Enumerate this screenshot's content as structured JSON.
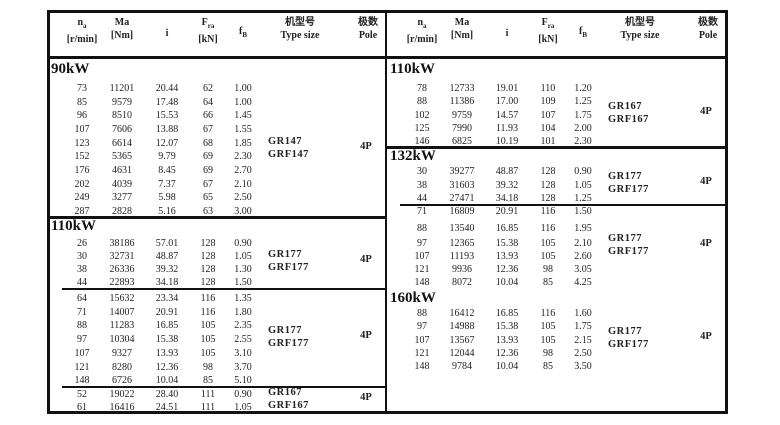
{
  "header": {
    "na": "n",
    "na_sub": "a",
    "na_unit": "[r/min]",
    "ma": "Ma",
    "ma_unit": "[Nm]",
    "i": "i",
    "fra": "F",
    "fra_sub": "ra",
    "fra_unit": "[kN]",
    "fb": "f",
    "fb_sub": "B",
    "type_cn": "机型号",
    "type_en": "Type size",
    "pole_cn": "极数",
    "pole_en": "Pole"
  },
  "left": [
    {
      "heading": "90kW",
      "type": [
        "GR147",
        "GRF147"
      ],
      "pole": "4P",
      "rows": [
        [
          "73",
          "11201",
          "20.44",
          "62",
          "1.00"
        ],
        [
          "85",
          "9579",
          "17.48",
          "64",
          "1.00"
        ],
        [
          "96",
          "8510",
          "15.53",
          "66",
          "1.45"
        ],
        [
          "107",
          "7606",
          "13.88",
          "67",
          "1.55"
        ],
        [
          "123",
          "6614",
          "12.07",
          "68",
          "1.85"
        ],
        [
          "152",
          "5365",
          "9.79",
          "69",
          "2.30"
        ],
        [
          "176",
          "4631",
          "8.45",
          "69",
          "2.70"
        ],
        [
          "202",
          "4039",
          "7.37",
          "67",
          "2.10"
        ],
        [
          "249",
          "3277",
          "5.98",
          "65",
          "2.50"
        ],
        [
          "287",
          "2828",
          "5.16",
          "63",
          "3.00"
        ]
      ]
    },
    {
      "heading": "110kW",
      "type": [
        "GR177",
        "GRF177"
      ],
      "pole": "4P",
      "rows": [
        [
          "26",
          "38186",
          "57.01",
          "128",
          "0.90"
        ],
        [
          "30",
          "32731",
          "48.87",
          "128",
          "1.05"
        ],
        [
          "38",
          "26336",
          "39.32",
          "128",
          "1.30"
        ],
        [
          "44",
          "22893",
          "34.18",
          "128",
          "1.50"
        ]
      ]
    },
    {
      "heading": "",
      "type": [
        "GR177",
        "GRF177"
      ],
      "pole": "4P",
      "rows": [
        [
          "64",
          "15632",
          "23.34",
          "116",
          "1.35"
        ],
        [
          "71",
          "14007",
          "20.91",
          "116",
          "1.80"
        ],
        [
          "88",
          "11283",
          "16.85",
          "105",
          "2.35"
        ],
        [
          "97",
          "10304",
          "15.38",
          "105",
          "2.55"
        ],
        [
          "107",
          "9327",
          "13.93",
          "105",
          "3.10"
        ],
        [
          "121",
          "8280",
          "12.36",
          "98",
          "3.70"
        ],
        [
          "148",
          "6726",
          "10.04",
          "85",
          "5.10"
        ]
      ]
    },
    {
      "heading": "",
      "type": [
        "GR167",
        "GRF167"
      ],
      "pole": "4P",
      "rows": [
        [
          "52",
          "19022",
          "28.40",
          "111",
          "0.90"
        ],
        [
          "61",
          "16416",
          "24.51",
          "111",
          "1.05"
        ]
      ]
    }
  ],
  "right": [
    {
      "heading": "110kW",
      "type": [
        "GR167",
        "GRF167"
      ],
      "pole": "4P",
      "rows": [
        [
          "78",
          "12733",
          "19.01",
          "110",
          "1.20"
        ],
        [
          "88",
          "11386",
          "17.00",
          "109",
          "1.25"
        ],
        [
          "102",
          "9759",
          "14.57",
          "107",
          "1.75"
        ],
        [
          "125",
          "7990",
          "11.93",
          "104",
          "2.00"
        ],
        [
          "146",
          "6825",
          "10.19",
          "101",
          "2.30"
        ]
      ]
    },
    {
      "heading": "132kW",
      "type": [
        "GR177",
        "GRF177"
      ],
      "pole": "4P",
      "rows": [
        [
          "30",
          "39277",
          "48.87",
          "128",
          "0.90"
        ],
        [
          "38",
          "31603",
          "39.32",
          "128",
          "1.05"
        ],
        [
          "44",
          "27471",
          "34.18",
          "128",
          "1.25"
        ]
      ]
    },
    {
      "heading": "",
      "type": [
        "GR177",
        "GRF177"
      ],
      "pole": "4P",
      "rows": [
        [
          "71",
          "16809",
          "20.91",
          "116",
          "1.50"
        ],
        [
          "88",
          "13540",
          "16.85",
          "116",
          "1.95"
        ],
        [
          "97",
          "12365",
          "15.38",
          "105",
          "2.10"
        ],
        [
          "107",
          "11193",
          "13.93",
          "105",
          "2.60"
        ],
        [
          "121",
          "9936",
          "12.36",
          "98",
          "3.05"
        ],
        [
          "148",
          "8072",
          "10.04",
          "85",
          "4.25"
        ]
      ]
    },
    {
      "heading": "160kW",
      "type": [
        "GR177",
        "GRF177"
      ],
      "pole": "4P",
      "rows": [
        [
          "88",
          "16412",
          "16.85",
          "116",
          "1.60"
        ],
        [
          "97",
          "14988",
          "15.38",
          "105",
          "1.75"
        ],
        [
          "107",
          "13567",
          "13.93",
          "105",
          "2.15"
        ],
        [
          "121",
          "12044",
          "12.36",
          "98",
          "2.50"
        ],
        [
          "148",
          "9784",
          "10.04",
          "85",
          "3.50"
        ]
      ]
    }
  ]
}
